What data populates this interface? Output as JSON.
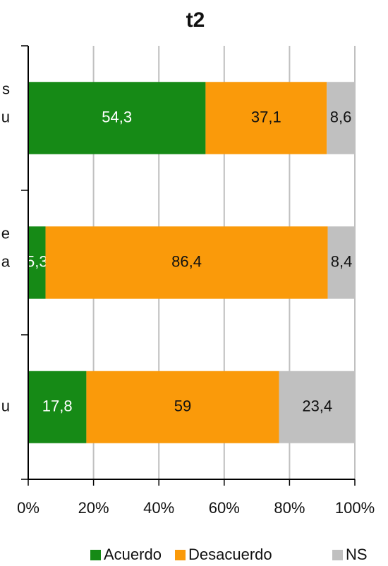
{
  "chart_data": {
    "type": "stacked_bar_horizontal",
    "title": "t2",
    "categories": [
      "s\nu",
      "e\na",
      "u"
    ],
    "series": [
      {
        "name": "Acuerdo",
        "color": "#168a16",
        "values": [
          54.3,
          5.3,
          17.8
        ],
        "value_labels": [
          "54,3",
          "5,3",
          "17,8"
        ]
      },
      {
        "name": "Desacuerdo",
        "color": "#fa9a0a",
        "values": [
          37.1,
          86.4,
          59
        ],
        "value_labels": [
          "37,1",
          "86,4",
          "59"
        ]
      },
      {
        "name": "NS",
        "color": "#c0c0c0",
        "values": [
          8.6,
          8.4,
          23.4
        ],
        "value_labels": [
          "8,6",
          "8,4",
          "23,4"
        ]
      }
    ],
    "xlim": [
      0,
      100
    ],
    "xticks": [
      {
        "value": 0,
        "label": "0%"
      },
      {
        "value": 20,
        "label": "20%"
      },
      {
        "value": 40,
        "label": "40%"
      },
      {
        "value": 60,
        "label": "60%"
      },
      {
        "value": 80,
        "label": "80%"
      },
      {
        "value": 100,
        "label": "100%"
      }
    ],
    "grid": true,
    "legend": "bottom"
  }
}
